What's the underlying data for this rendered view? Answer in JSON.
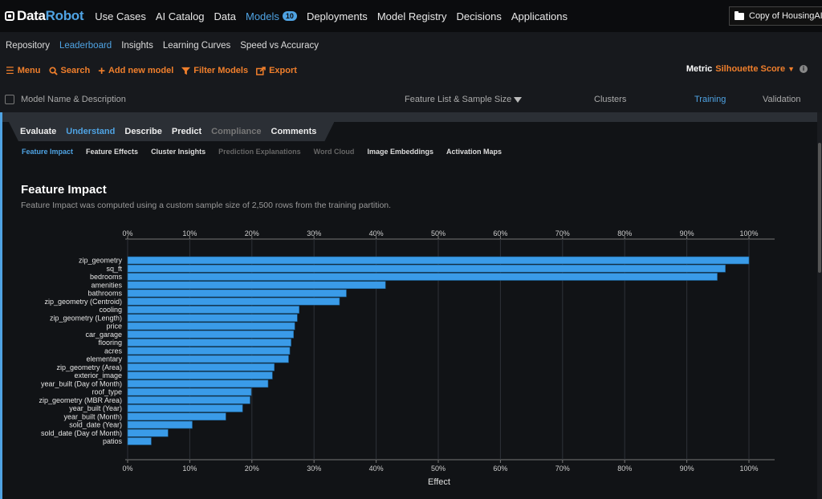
{
  "app": {
    "brand_a": "Data",
    "brand_b": "Robot"
  },
  "nav": [
    {
      "label": "Use Cases"
    },
    {
      "label": "AI Catalog"
    },
    {
      "label": "Data"
    },
    {
      "label": "Models",
      "badge": "10",
      "active": true
    },
    {
      "label": "Deployments"
    },
    {
      "label": "Model Registry"
    },
    {
      "label": "Decisions"
    },
    {
      "label": "Applications"
    }
  ],
  "project": {
    "name": "Copy of HousingAI"
  },
  "subnav": [
    {
      "label": "Repository"
    },
    {
      "label": "Leaderboard",
      "active": true
    },
    {
      "label": "Insights"
    },
    {
      "label": "Learning Curves"
    },
    {
      "label": "Speed vs Accuracy"
    }
  ],
  "toolbar": {
    "menu": "Menu",
    "search": "Search",
    "add_model": "Add new model",
    "filter": "Filter Models",
    "export": "Export",
    "metric_label": "Metric",
    "metric_value": "Silhouette Score"
  },
  "table_header": {
    "name": "Model Name & Description",
    "feature_list": "Feature List & Sample Size",
    "clusters": "Clusters",
    "training": "Training",
    "validation": "Validation"
  },
  "tabs": [
    {
      "label": "Evaluate"
    },
    {
      "label": "Understand",
      "active": true
    },
    {
      "label": "Describe"
    },
    {
      "label": "Predict"
    },
    {
      "label": "Compliance",
      "disabled": true
    },
    {
      "label": "Comments"
    }
  ],
  "insight_tabs": [
    {
      "label": "Feature Impact",
      "active": true
    },
    {
      "label": "Feature Effects"
    },
    {
      "label": "Cluster Insights"
    },
    {
      "label": "Prediction Explanations",
      "disabled": true
    },
    {
      "label": "Word Cloud",
      "disabled": true
    },
    {
      "label": "Image Embeddings"
    },
    {
      "label": "Activation Maps"
    }
  ],
  "feature_impact": {
    "title": "Feature Impact",
    "description": "Feature Impact was computed using a custom sample size of 2,500 rows from the training partition."
  },
  "colors": {
    "accent": "#4fa3e3",
    "orange": "#f07f2c",
    "bar": "#3a9be8"
  },
  "chart_data": {
    "type": "bar",
    "orientation": "horizontal",
    "xlabel": "Effect",
    "xlim": [
      0,
      100
    ],
    "ticks": [
      0,
      10,
      20,
      30,
      40,
      50,
      60,
      70,
      80,
      90,
      100
    ],
    "tick_suffix": "%",
    "grid": true,
    "categories": [
      "zip_geometry",
      "sq_ft",
      "bedrooms",
      "amenities",
      "bathrooms",
      "zip_geometry (Centroid)",
      "cooling",
      "zip_geometry (Length)",
      "price",
      "car_garage",
      "flooring",
      "acres",
      "elementary",
      "zip_geometry (Area)",
      "exterior_image",
      "year_built (Day of Month)",
      "roof_type",
      "zip_geometry (MBR Area)",
      "year_built (Year)",
      "year_built (Month)",
      "sold_date (Year)",
      "sold_date (Day of Month)",
      "patios"
    ],
    "values": [
      100,
      96.2,
      94.9,
      41.5,
      35.2,
      34.1,
      27.6,
      27.3,
      26.9,
      26.7,
      26.3,
      26.1,
      25.9,
      23.6,
      23.3,
      22.6,
      19.9,
      19.7,
      18.5,
      15.8,
      10.4,
      6.5,
      3.8
    ]
  }
}
